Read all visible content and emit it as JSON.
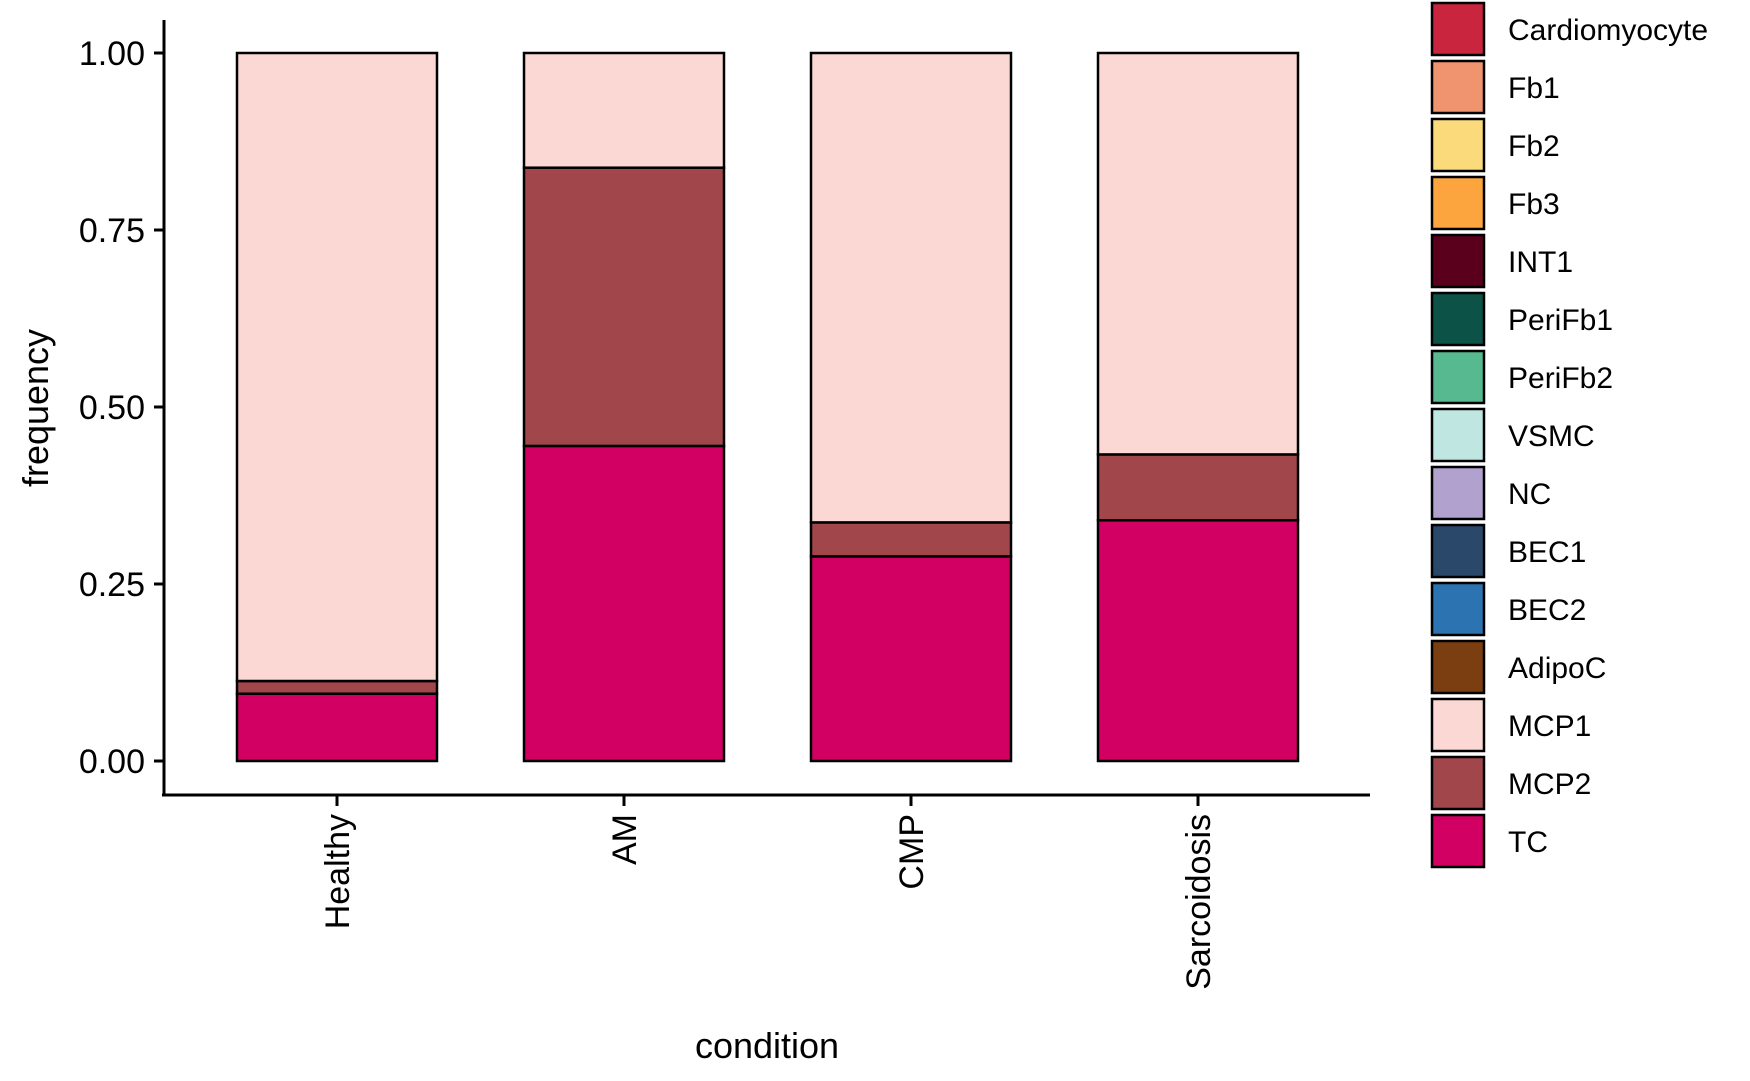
{
  "chart_data": {
    "type": "bar",
    "stacked": true,
    "xlabel": "condition",
    "ylabel": "frequency",
    "ylim": [
      0,
      1
    ],
    "yticks": [
      "0.00",
      "0.25",
      "0.50",
      "0.75",
      "1.00"
    ],
    "grid": false,
    "legend_position": "right",
    "categories": [
      "Healthy",
      "AM",
      "CMP",
      "Sarcoidosis"
    ],
    "series": [
      {
        "name": "TC",
        "color": "#D20062",
        "values": [
          0.095,
          0.445,
          0.289,
          0.34
        ]
      },
      {
        "name": "MCP2",
        "color": "#A1474B",
        "values": [
          0.018,
          0.393,
          0.048,
          0.093
        ]
      },
      {
        "name": "MCP1",
        "color": "#FBD8D4",
        "values": [
          0.887,
          0.162,
          0.663,
          0.567
        ]
      }
    ],
    "legend": [
      {
        "name": "Cardiomyocyte",
        "color": "#C9253E"
      },
      {
        "name": "Fb1",
        "color": "#F0936F"
      },
      {
        "name": "Fb2",
        "color": "#FBDA7B"
      },
      {
        "name": "Fb3",
        "color": "#FCA43E"
      },
      {
        "name": "INT1",
        "color": "#5A001C"
      },
      {
        "name": "PeriFb1",
        "color": "#0C5247"
      },
      {
        "name": "PeriFb2",
        "color": "#56B990"
      },
      {
        "name": "VSMC",
        "color": "#C0E6E2"
      },
      {
        "name": "NC",
        "color": "#B0A1CE"
      },
      {
        "name": "BEC1",
        "color": "#2A4869"
      },
      {
        "name": "BEC2",
        "color": "#2C73B1"
      },
      {
        "name": "AdipoC",
        "color": "#7A3E10"
      },
      {
        "name": "MCP1",
        "color": "#FBD8D4"
      },
      {
        "name": "MCP2",
        "color": "#A1474B"
      },
      {
        "name": "TC",
        "color": "#D20062"
      }
    ]
  }
}
